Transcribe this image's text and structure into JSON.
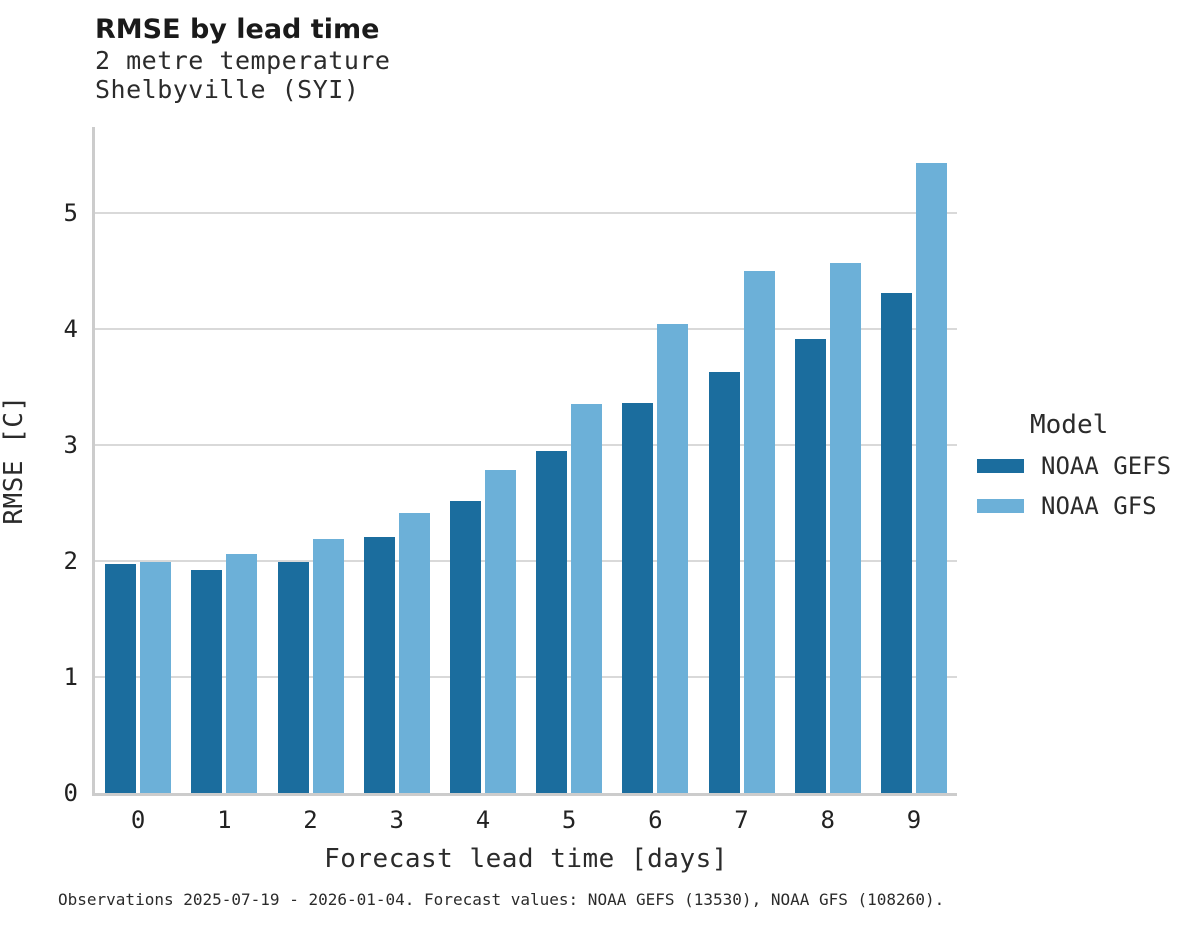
{
  "figure": {
    "title": "RMSE by lead time",
    "subtitle_line1": "2 metre temperature",
    "subtitle_line2": "Shelbyville (SYI)",
    "footer": "Observations 2025-07-19 - 2026-01-04. Forecast values: NOAA GEFS (13530), NOAA GFS (108260)."
  },
  "legend": {
    "title": "Model",
    "entries": [
      {
        "label": "NOAA GEFS",
        "color": "#1b6d9e"
      },
      {
        "label": "NOAA GFS",
        "color": "#6cb0d8"
      }
    ]
  },
  "colors": {
    "gefs_bar": "#1b6d9e",
    "gfs_bar": "#6cb0d8",
    "gridline": "#d9d9d9",
    "axis_line": "#cccccc",
    "text": "#222222"
  },
  "chart_data": {
    "type": "bar",
    "title": "RMSE by lead time",
    "subtitle": [
      "2 metre temperature",
      "Shelbyville (SYI)"
    ],
    "xlabel": "Forecast lead time [days]",
    "ylabel": "RMSE [C]",
    "categories": [
      "0",
      "1",
      "2",
      "3",
      "4",
      "5",
      "6",
      "7",
      "8",
      "9"
    ],
    "series": [
      {
        "name": "NOAA GEFS",
        "color": "#1b6d9e",
        "values": [
          1.97,
          1.92,
          1.99,
          2.21,
          2.52,
          2.95,
          3.36,
          3.63,
          3.91,
          4.31
        ]
      },
      {
        "name": "NOAA GFS",
        "color": "#6cb0d8",
        "values": [
          1.99,
          2.06,
          2.19,
          2.41,
          2.78,
          3.35,
          4.04,
          4.5,
          4.57,
          5.43
        ]
      }
    ],
    "ylim": [
      0,
      5.74
    ],
    "yticks": [
      0,
      1,
      2,
      3,
      4,
      5
    ],
    "grid": "horizontal",
    "legend_title": "Model",
    "legend_position": "right",
    "footnote": "Observations 2025-07-19 - 2026-01-04. Forecast values: NOAA GEFS (13530), NOAA GFS (108260)."
  }
}
